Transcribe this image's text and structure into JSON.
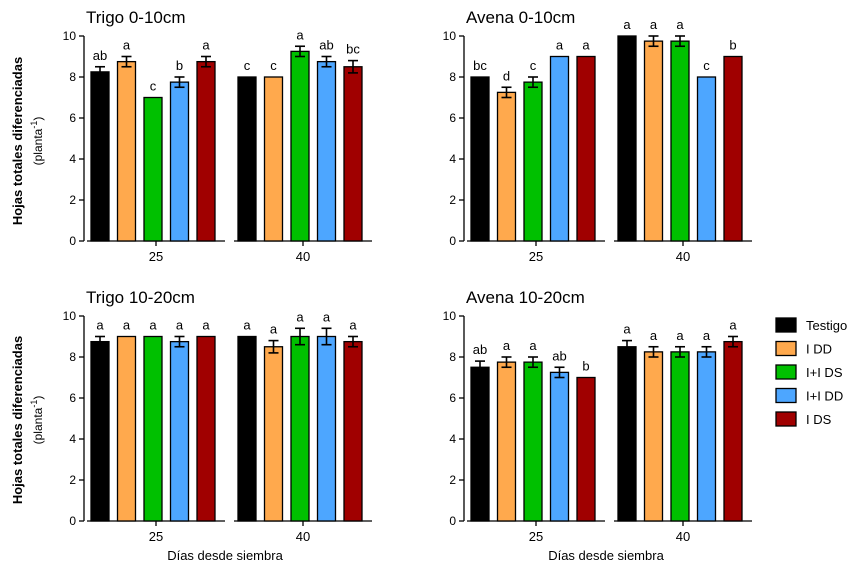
{
  "figure": {
    "ylabel_line1": "Hojas totales diferenciadas",
    "ylabel_line2_prefix": "(planta",
    "ylabel_line2_sup": "-1",
    "ylabel_line2_suffix": ")",
    "xlabel": "Días desde siembra"
  },
  "legend": [
    {
      "name": "Testigo",
      "color": "#000000"
    },
    {
      "name": "I DD",
      "color": "#ffa94d"
    },
    {
      "name": "I+I DS",
      "color": "#00c000"
    },
    {
      "name": "I+I DD",
      "color": "#4da6ff"
    },
    {
      "name": "I DS",
      "color": "#a00000"
    }
  ],
  "chart_data": [
    {
      "type": "bar",
      "title": "Trigo 0-10cm",
      "categories": [
        "25",
        "40"
      ],
      "ylim": [
        0,
        10
      ],
      "yticks": [
        "0",
        "2",
        "4",
        "6",
        "8",
        "10"
      ],
      "series": [
        {
          "name": "Testigo",
          "values": [
            8.25,
            8.0
          ],
          "errors": [
            0.25,
            0.0
          ],
          "letters": [
            "ab",
            "c"
          ]
        },
        {
          "name": "I DD",
          "values": [
            8.75,
            8.0
          ],
          "errors": [
            0.25,
            0.0
          ],
          "letters": [
            "a",
            "c"
          ]
        },
        {
          "name": "I+I DS",
          "values": [
            7.0,
            9.25
          ],
          "errors": [
            0.0,
            0.25
          ],
          "letters": [
            "c",
            "a"
          ]
        },
        {
          "name": "I+I DD",
          "values": [
            7.75,
            8.75
          ],
          "errors": [
            0.25,
            0.25
          ],
          "letters": [
            "b",
            "ab"
          ]
        },
        {
          "name": "I DS",
          "values": [
            8.75,
            8.5
          ],
          "errors": [
            0.25,
            0.3
          ],
          "letters": [
            "a",
            "bc"
          ]
        }
      ]
    },
    {
      "type": "bar",
      "title": "Avena 0-10cm",
      "categories": [
        "25",
        "40"
      ],
      "ylim": [
        0,
        10
      ],
      "yticks": [
        "0",
        "2",
        "4",
        "6",
        "8",
        "10"
      ],
      "series": [
        {
          "name": "Testigo",
          "values": [
            8.0,
            10.0
          ],
          "errors": [
            0.0,
            0.0
          ],
          "letters": [
            "bc",
            "a"
          ]
        },
        {
          "name": "I DD",
          "values": [
            7.25,
            9.75
          ],
          "errors": [
            0.25,
            0.25
          ],
          "letters": [
            "d",
            "a"
          ]
        },
        {
          "name": "I+I DS",
          "values": [
            7.75,
            9.75
          ],
          "errors": [
            0.25,
            0.25
          ],
          "letters": [
            "c",
            "a"
          ]
        },
        {
          "name": "I+I DD",
          "values": [
            9.0,
            8.0
          ],
          "errors": [
            0.0,
            0.0
          ],
          "letters": [
            "a",
            "c"
          ]
        },
        {
          "name": "I DS",
          "values": [
            9.0,
            9.0
          ],
          "errors": [
            0.0,
            0.0
          ],
          "letters": [
            "a",
            "b"
          ]
        }
      ]
    },
    {
      "type": "bar",
      "title": "Trigo 10-20cm",
      "categories": [
        "25",
        "40"
      ],
      "ylim": [
        0,
        10
      ],
      "yticks": [
        "0",
        "2",
        "4",
        "6",
        "8",
        "10"
      ],
      "series": [
        {
          "name": "Testigo",
          "values": [
            8.75,
            9.0
          ],
          "errors": [
            0.25,
            0.0
          ],
          "letters": [
            "a",
            "a"
          ]
        },
        {
          "name": "I DD",
          "values": [
            9.0,
            8.5
          ],
          "errors": [
            0.0,
            0.3
          ],
          "letters": [
            "a",
            "a"
          ]
        },
        {
          "name": "I+I DS",
          "values": [
            9.0,
            9.0
          ],
          "errors": [
            0.0,
            0.4
          ],
          "letters": [
            "a",
            "a"
          ]
        },
        {
          "name": "I+I DD",
          "values": [
            8.75,
            9.0
          ],
          "errors": [
            0.25,
            0.4
          ],
          "letters": [
            "a",
            "a"
          ]
        },
        {
          "name": "I DS",
          "values": [
            9.0,
            8.75
          ],
          "errors": [
            0.0,
            0.25
          ],
          "letters": [
            "a",
            "a"
          ]
        }
      ]
    },
    {
      "type": "bar",
      "title": "Avena 10-20cm",
      "categories": [
        "25",
        "40"
      ],
      "ylim": [
        0,
        10
      ],
      "yticks": [
        "0",
        "2",
        "4",
        "6",
        "8",
        "10"
      ],
      "series": [
        {
          "name": "Testigo",
          "values": [
            7.5,
            8.5
          ],
          "errors": [
            0.3,
            0.3
          ],
          "letters": [
            "ab",
            "a"
          ]
        },
        {
          "name": "I DD",
          "values": [
            7.75,
            8.25
          ],
          "errors": [
            0.25,
            0.25
          ],
          "letters": [
            "a",
            "a"
          ]
        },
        {
          "name": "I+I DS",
          "values": [
            7.75,
            8.25
          ],
          "errors": [
            0.25,
            0.25
          ],
          "letters": [
            "a",
            "a"
          ]
        },
        {
          "name": "I+I DD",
          "values": [
            7.25,
            8.25
          ],
          "errors": [
            0.25,
            0.25
          ],
          "letters": [
            "ab",
            "a"
          ]
        },
        {
          "name": "I DS",
          "values": [
            7.0,
            8.75
          ],
          "errors": [
            0.0,
            0.25
          ],
          "letters": [
            "b",
            "a"
          ]
        }
      ]
    }
  ]
}
